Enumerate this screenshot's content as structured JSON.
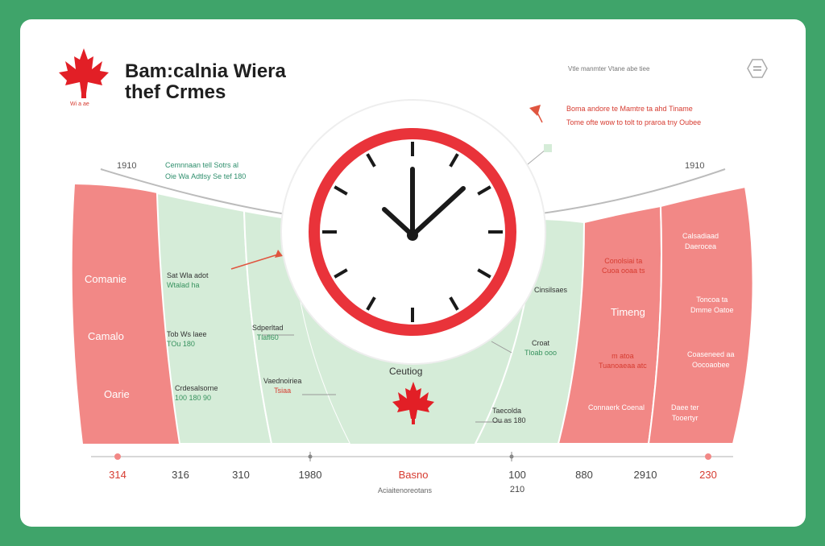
{
  "header": {
    "title_line1": "Bam:calnia Wiera",
    "title_line2": "thef Crmes",
    "logo_caption": "Wi a ae",
    "right_caption": "Vtle manmter Vtane abe tiee",
    "menu_icon": "menu-icon"
  },
  "notes": {
    "red_line1": "Boma andore te Mamtre ta ahd Tiname",
    "red_line2": "Tome ofte wow to tolt to praroa tny Oubee",
    "left_corner_year": "1910",
    "right_corner_year": "1910",
    "left_top_line1": "Cemnnaan tell Sotrs al",
    "left_top_line2": "Oie Wa Adtlsy Se tef 180"
  },
  "left_bands": {
    "outer_labels": [
      "Comanie",
      "Camalo",
      "Oarie"
    ],
    "inner_labels": [
      {
        "line1": "Sat Wla adot",
        "line2": "Wtalad ha"
      },
      {
        "line1": "Tob Ws laee",
        "line2": "TOu 180"
      },
      {
        "line1": "Crdesalsorne",
        "line2": "100 180 90"
      }
    ],
    "mid_labels": [
      {
        "line1": "Sdperltad",
        "line2": "Tlafl60"
      },
      {
        "line1": "Vaednoiriea",
        "line2": "Tsiaa"
      }
    ]
  },
  "center": {
    "label": "Ceutiog",
    "clock_icon": "clock-icon",
    "leaf_icon": "maple-leaf-icon"
  },
  "right_bands": {
    "green_labels": [
      {
        "line1": "Cinsilsaes",
        "line2": ""
      },
      {
        "line1": "Croat",
        "line2": "Tloab ooo"
      },
      {
        "line1": "Taecolda",
        "line2": "Ou as 180"
      }
    ],
    "inner_labels": [
      {
        "line1": "Conolsiai ta",
        "line2": "Cuoa ooaa ts"
      },
      {
        "line1": "Timeng",
        "line2": ""
      },
      {
        "line1": "m atoa",
        "line2": "Tuanoaeaa atc"
      },
      {
        "line1": "Connaerk Coenal",
        "line2": ""
      }
    ],
    "outer_labels": [
      {
        "line1": "Calsadiaad",
        "line2": "Daerocea"
      },
      {
        "line1": "Toncoa ta",
        "line2": "Dmme Oatoe"
      },
      {
        "line1": "Coaseneed aa",
        "line2": "Oocoaobee"
      },
      {
        "line1": "Daee ter",
        "line2": "Tooertyr"
      }
    ]
  },
  "timeline": {
    "ticks": [
      "314",
      "316",
      "310",
      "1980",
      "Basno",
      "100",
      "880",
      "2910",
      "230"
    ],
    "sub_left": "Aciaitenoreotans",
    "sub_right": "210"
  },
  "colors": {
    "background": "#3fa46a",
    "red_band": "#f28886",
    "green_band": "#d5ecd8",
    "clock_ring": "#e9333a",
    "accent_red": "#d63b30"
  }
}
